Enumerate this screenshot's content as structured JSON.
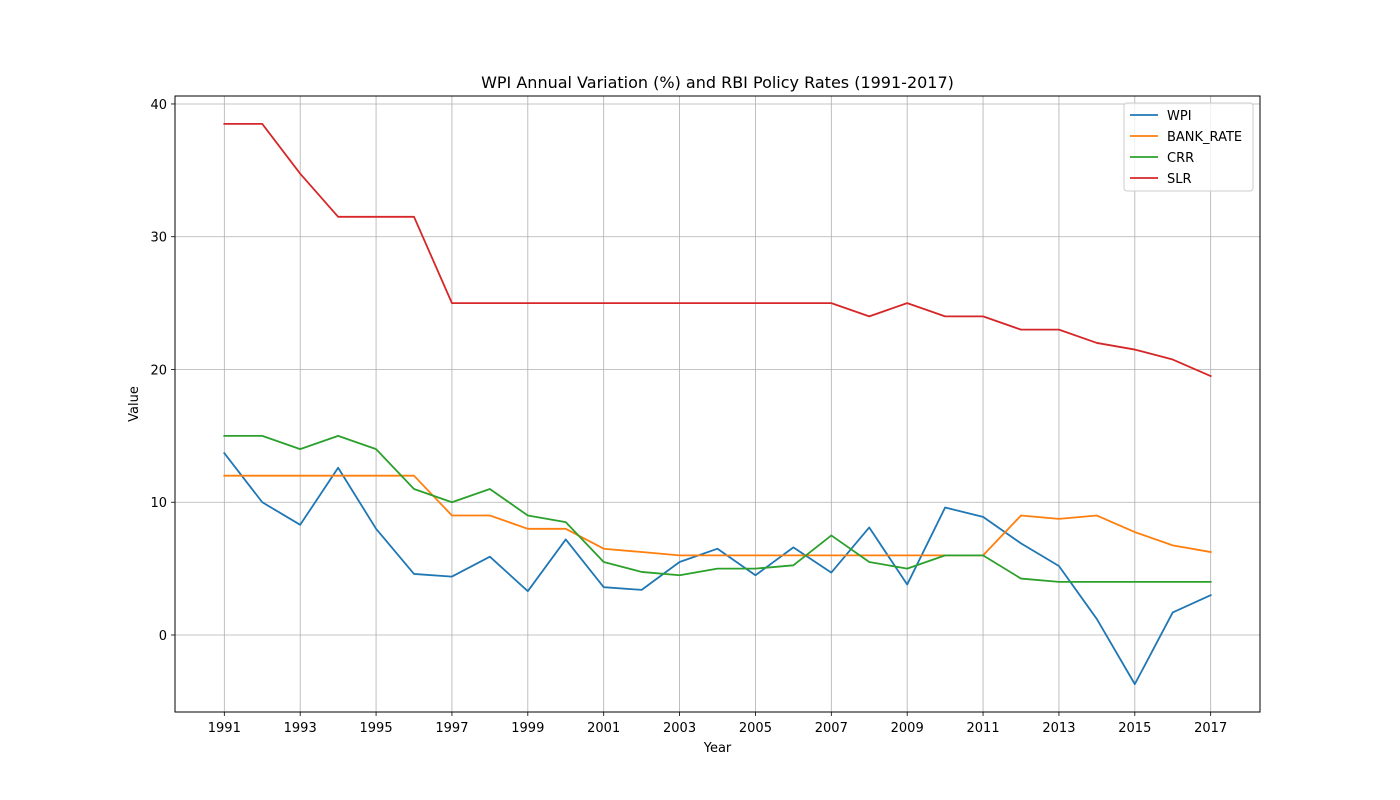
{
  "chart_data": {
    "type": "line",
    "title": "WPI Annual Variation (%) and RBI Policy Rates (1991-2017)",
    "xlabel": "Year",
    "ylabel": "Value",
    "x": [
      1991,
      1992,
      1993,
      1994,
      1995,
      1996,
      1997,
      1998,
      1999,
      2000,
      2001,
      2002,
      2003,
      2004,
      2005,
      2006,
      2007,
      2008,
      2009,
      2010,
      2011,
      2012,
      2013,
      2014,
      2015,
      2016,
      2017
    ],
    "xticks": [
      "1991",
      "1993",
      "1995",
      "1997",
      "1999",
      "2001",
      "2003",
      "2005",
      "2007",
      "2009",
      "2011",
      "2013",
      "2015",
      "2017"
    ],
    "yticks": [
      "0",
      "10",
      "20",
      "30",
      "40"
    ],
    "xlim": [
      1989.7,
      2018.3
    ],
    "ylim": [
      -5.8,
      40.6
    ],
    "grid": true,
    "legend_position": "top-right",
    "series": [
      {
        "name": "WPI",
        "color": "#1f77b4",
        "values": [
          13.7,
          10.0,
          8.3,
          12.6,
          8.0,
          4.6,
          4.4,
          5.9,
          3.3,
          7.2,
          3.6,
          3.4,
          5.5,
          6.5,
          4.5,
          6.6,
          4.7,
          8.1,
          3.8,
          9.6,
          8.9,
          6.9,
          5.2,
          1.2,
          -3.7,
          1.7,
          3.0
        ]
      },
      {
        "name": "BANK_RATE",
        "color": "#ff7f0e",
        "values": [
          12.0,
          12.0,
          12.0,
          12.0,
          12.0,
          12.0,
          9.0,
          9.0,
          8.0,
          8.0,
          6.5,
          6.25,
          6.0,
          6.0,
          6.0,
          6.0,
          6.0,
          6.0,
          6.0,
          6.0,
          6.0,
          9.0,
          8.75,
          9.0,
          7.75,
          6.75,
          6.25
        ]
      },
      {
        "name": "CRR",
        "color": "#2ca02c",
        "values": [
          15.0,
          15.0,
          14.0,
          15.0,
          14.0,
          11.0,
          10.0,
          11.0,
          9.0,
          8.5,
          5.5,
          4.75,
          4.5,
          5.0,
          5.0,
          5.25,
          7.5,
          5.5,
          5.0,
          6.0,
          6.0,
          4.25,
          4.0,
          4.0,
          4.0,
          4.0,
          4.0
        ]
      },
      {
        "name": "SLR",
        "color": "#d62728",
        "values": [
          38.5,
          38.5,
          34.75,
          31.5,
          31.5,
          31.5,
          25.0,
          25.0,
          25.0,
          25.0,
          25.0,
          25.0,
          25.0,
          25.0,
          25.0,
          25.0,
          25.0,
          24.0,
          25.0,
          24.0,
          24.0,
          23.0,
          23.0,
          22.0,
          21.5,
          20.75,
          19.5
        ]
      }
    ]
  }
}
